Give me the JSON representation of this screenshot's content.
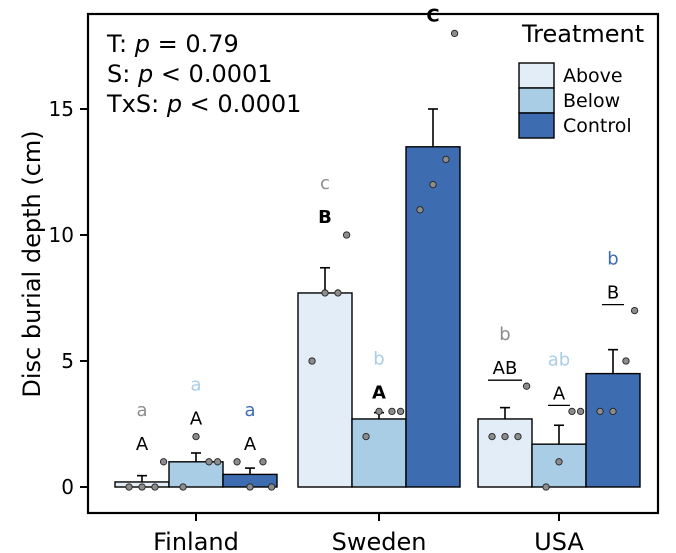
{
  "chart_data": {
    "type": "bar",
    "ylabel": "Disc burial depth (cm)",
    "ylim": [
      0,
      18.5
    ],
    "yticks": [
      0,
      5,
      10,
      15
    ],
    "grid": false,
    "categories": [
      "Finland",
      "Sweden",
      "USA"
    ],
    "legend": {
      "title": "Treatment",
      "placement": "top-right",
      "entries": [
        "Above",
        "Below",
        "Control"
      ]
    },
    "stats": [
      {
        "label": "T:",
        "symbol": "p",
        "text": " = 0.79"
      },
      {
        "label": "S:",
        "symbol": "p",
        "text": " < 0.0001"
      },
      {
        "label": "TxS:",
        "symbol": "p",
        "text": " < 0.0001"
      }
    ],
    "colors": {
      "Above": "#e3edf8",
      "Below": "#aacde6",
      "Control": "#3d6db0",
      "point": "#8c8c8c",
      "letter_gray": "#8c8c8c",
      "letter_light": "#a8cfea",
      "letter_dark": "#3d6db0"
    },
    "series": [
      {
        "name": "Above",
        "values": [
          0.2,
          7.7,
          2.7
        ],
        "se": [
          0.25,
          1.0,
          0.45
        ],
        "points": [
          [
            0,
            0,
            0,
            1.0
          ],
          [
            5.0,
            7.7,
            7.7,
            10.0
          ],
          [
            2.0,
            2.0,
            2.0,
            4.0
          ]
        ],
        "upper_letters": [
          "a",
          "c",
          "b"
        ],
        "lower_letters": [
          "A",
          "B",
          "AB"
        ],
        "lower_bold": [
          false,
          true,
          false
        ],
        "lower_underline": [
          false,
          false,
          true
        ]
      },
      {
        "name": "Below",
        "values": [
          1.0,
          2.7,
          1.7
        ],
        "se": [
          0.35,
          0.25,
          0.75
        ],
        "points": [
          [
            0,
            2.0,
            1.0,
            1.0
          ],
          [
            2.0,
            3.0,
            3.0,
            3.0
          ],
          [
            0,
            1.0,
            3.0,
            3.0
          ]
        ],
        "upper_letters": [
          "a",
          "b",
          "ab"
        ],
        "lower_letters": [
          "A",
          "A",
          "A"
        ],
        "lower_bold": [
          false,
          true,
          false
        ],
        "lower_underline": [
          false,
          false,
          true
        ]
      },
      {
        "name": "Control",
        "values": [
          0.5,
          13.5,
          4.5
        ],
        "se": [
          0.25,
          1.5,
          0.95
        ],
        "points": [
          [
            1.0,
            0,
            1.0,
            0
          ],
          [
            11.0,
            12.0,
            13.0,
            18.0
          ],
          [
            3.0,
            3.0,
            5.0,
            7.0
          ]
        ],
        "upper_letters": [
          "a",
          "c",
          "b"
        ],
        "lower_letters": [
          "A",
          "C",
          "B"
        ],
        "lower_bold": [
          false,
          true,
          false
        ],
        "lower_underline": [
          false,
          false,
          true
        ]
      }
    ]
  }
}
